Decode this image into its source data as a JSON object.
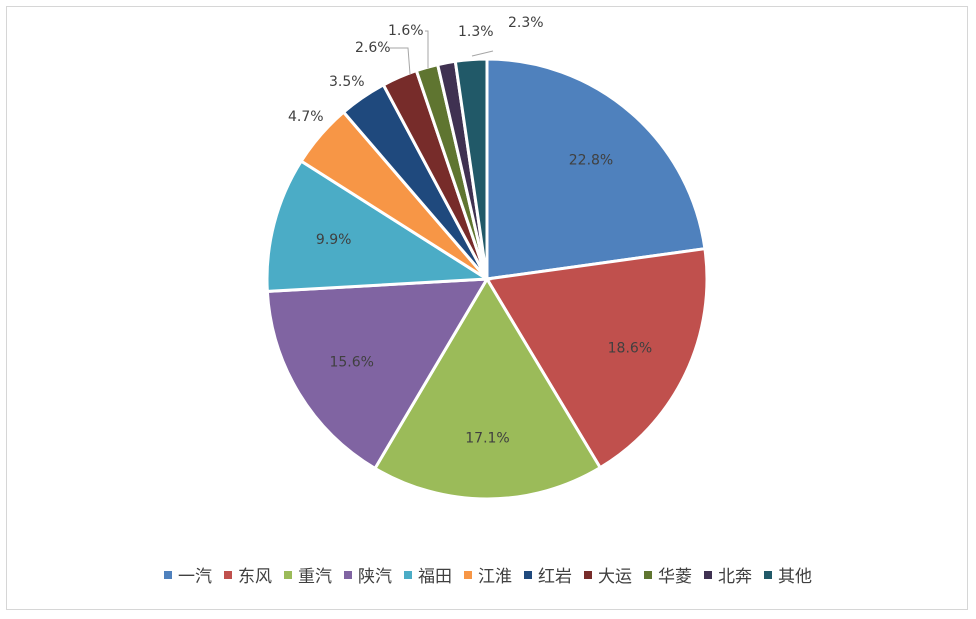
{
  "chart_data": {
    "type": "pie",
    "slices": [
      {
        "label": "一汽",
        "value": 22.8,
        "value_label": "22.8%",
        "color": "#4F81BD"
      },
      {
        "label": "东风",
        "value": 18.6,
        "value_label": "18.6%",
        "color": "#C0504D"
      },
      {
        "label": "重汽",
        "value": 17.1,
        "value_label": "17.1%",
        "color": "#9BBB59"
      },
      {
        "label": "陕汽",
        "value": 15.6,
        "value_label": "15.6%",
        "color": "#8064A2"
      },
      {
        "label": "福田",
        "value": 9.9,
        "value_label": "9.9%",
        "color": "#4BACC6"
      },
      {
        "label": "江淮",
        "value": 4.7,
        "value_label": "4.7%",
        "color": "#F79646"
      },
      {
        "label": "红岩",
        "value": 3.5,
        "value_label": "3.5%",
        "color": "#1F497D"
      },
      {
        "label": "大运",
        "value": 2.6,
        "value_label": "2.6%",
        "color": "#772C2A"
      },
      {
        "label": "华菱",
        "value": 1.6,
        "value_label": "1.6%",
        "color": "#5F7530"
      },
      {
        "label": "北奔",
        "value": 1.3,
        "value_label": "1.3%",
        "color": "#3F3151"
      },
      {
        "label": "其他",
        "value": 2.3,
        "value_label": "2.3%",
        "color": "#215968"
      }
    ],
    "legend_position": "bottom",
    "start_angle": "12 o'clock",
    "direction": "clockwise"
  }
}
